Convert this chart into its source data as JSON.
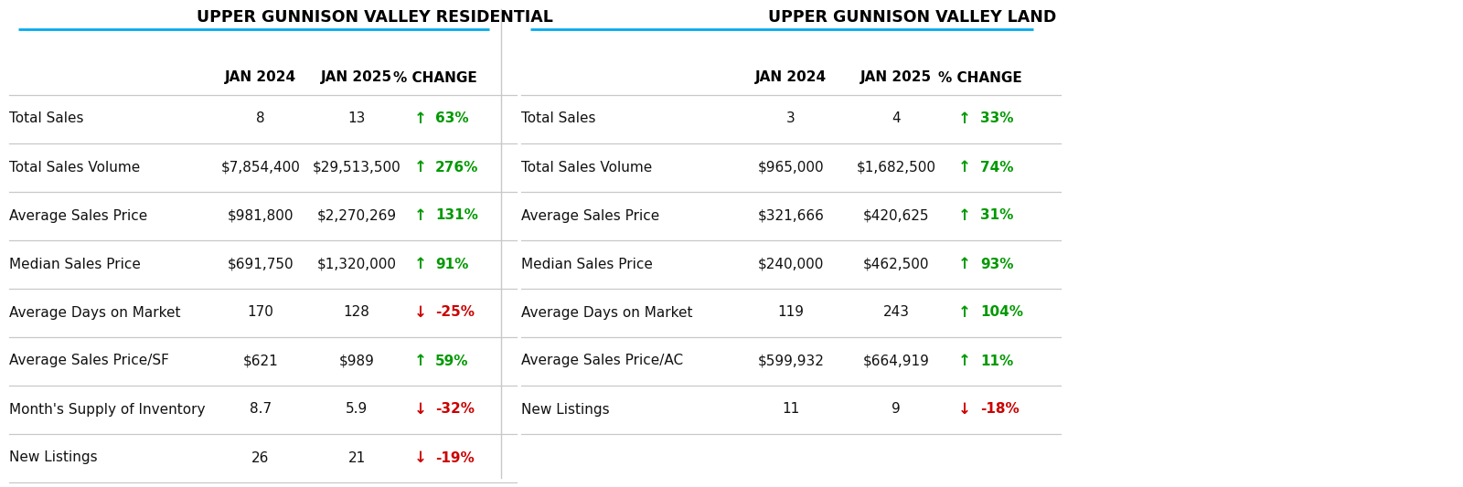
{
  "title_left": "UPPER GUNNISON VALLEY RESIDENTIAL",
  "title_right": "UPPER GUNNISON VALLEY LAND",
  "col_headers": [
    "JAN 2024",
    "JAN 2025",
    "% CHANGE"
  ],
  "residential": {
    "rows": [
      {
        "label": "Total Sales",
        "v2024": "8",
        "v2025": "13",
        "pct": "63%",
        "up": true
      },
      {
        "label": "Total Sales Volume",
        "v2024": "$7,854,400",
        "v2025": "$29,513,500",
        "pct": "276%",
        "up": true
      },
      {
        "label": "Average Sales Price",
        "v2024": "$981,800",
        "v2025": "$2,270,269",
        "pct": "131%",
        "up": true
      },
      {
        "label": "Median Sales Price",
        "v2024": "$691,750",
        "v2025": "$1,320,000",
        "pct": "91%",
        "up": true
      },
      {
        "label": "Average Days on Market",
        "v2024": "170",
        "v2025": "128",
        "pct": "-25%",
        "up": false
      },
      {
        "label": "Average Sales Price/SF",
        "v2024": "$621",
        "v2025": "$989",
        "pct": "59%",
        "up": true
      },
      {
        "label": "Month's Supply of Inventory",
        "v2024": "8.7",
        "v2025": "5.9",
        "pct": "-32%",
        "up": false
      },
      {
        "label": "New Listings",
        "v2024": "26",
        "v2025": "21",
        "pct": "-19%",
        "up": false
      }
    ]
  },
  "land": {
    "rows": [
      {
        "label": "Total Sales",
        "v2024": "3",
        "v2025": "4",
        "pct": "33%",
        "up": true
      },
      {
        "label": "Total Sales Volume",
        "v2024": "$965,000",
        "v2025": "$1,682,500",
        "pct": "74%",
        "up": true
      },
      {
        "label": "Average Sales Price",
        "v2024": "$321,666",
        "v2025": "$420,625",
        "pct": "31%",
        "up": true
      },
      {
        "label": "Median Sales Price",
        "v2024": "$240,000",
        "v2025": "$462,500",
        "pct": "93%",
        "up": true
      },
      {
        "label": "Average Days on Market",
        "v2024": "119",
        "v2025": "243",
        "pct": "104%",
        "up": true
      },
      {
        "label": "Average Sales Price/AC",
        "v2024": "$599,932",
        "v2025": "$664,919",
        "pct": "11%",
        "up": true
      },
      {
        "label": "New Listings",
        "v2024": "11",
        "v2025": "9",
        "pct": "-18%",
        "up": false
      }
    ]
  },
  "bg_color": "#ffffff",
  "text_color": "#111111",
  "header_color": "#000000",
  "green": "#009900",
  "red": "#cc0000",
  "divider_color": "#c8c8c8",
  "underline_color": "#00aaee",
  "title_fontsize": 12.5,
  "header_fontsize": 11,
  "row_fontsize": 11,
  "pct_fontsize": 11,
  "arrow_fontsize": 12
}
